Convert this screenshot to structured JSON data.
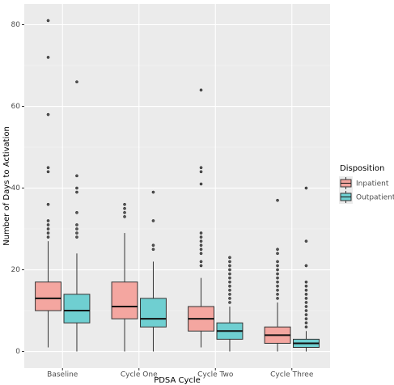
{
  "chart_data": {
    "type": "boxplot",
    "x_label": "PDSA Cycle",
    "y_label": "Number of Days to Activation",
    "categories": [
      "Baseline",
      "Cycle One",
      "Cycle Two",
      "Cycle Three"
    ],
    "ylim": [
      -4.05,
      85.05
    ],
    "yticks": [
      0,
      20,
      40,
      60,
      80
    ],
    "grid": true,
    "legend_title": "Disposition",
    "legend_position": "right",
    "series": [
      {
        "name": "Inpatient",
        "color": "#F4A6A0",
        "boxes": [
          {
            "whislo": 1,
            "q1": 10,
            "med": 13,
            "q3": 17,
            "whishi": 27,
            "outliers": [
              81,
              72,
              58,
              45,
              44,
              36,
              32,
              31,
              30,
              29,
              28
            ]
          },
          {
            "whislo": 0,
            "q1": 8,
            "med": 11,
            "q3": 17,
            "whishi": 29,
            "outliers": [
              36,
              35,
              34,
              33
            ]
          },
          {
            "whislo": 1,
            "q1": 5,
            "med": 8,
            "q3": 11,
            "whishi": 18,
            "outliers": [
              64,
              45,
              44,
              41,
              29,
              28,
              27,
              26,
              25,
              24,
              22,
              21
            ]
          },
          {
            "whislo": 0,
            "q1": 2,
            "med": 4,
            "q3": 6,
            "whishi": 12,
            "outliers": [
              37,
              25,
              24,
              22,
              21,
              20,
              19,
              18,
              17,
              16,
              15,
              14,
              13
            ]
          }
        ]
      },
      {
        "name": "Outpatient",
        "color": "#6FCFD1",
        "boxes": [
          {
            "whislo": 0,
            "q1": 7,
            "med": 10,
            "q3": 14,
            "whishi": 24,
            "outliers": [
              66,
              43,
              40,
              39,
              34,
              31,
              30,
              29,
              28
            ]
          },
          {
            "whislo": 0,
            "q1": 6,
            "med": 8,
            "q3": 13,
            "whishi": 22,
            "outliers": [
              39,
              32,
              26,
              25
            ]
          },
          {
            "whislo": 0,
            "q1": 3,
            "med": 5,
            "q3": 7,
            "whishi": 11,
            "outliers": [
              23,
              22,
              21,
              20,
              19,
              18,
              17,
              16,
              15,
              14,
              13,
              12
            ]
          },
          {
            "whislo": 0,
            "q1": 1,
            "med": 2,
            "q3": 3,
            "whishi": 5,
            "outliers": [
              40,
              27,
              21,
              17,
              16,
              15,
              14,
              13,
              12,
              11,
              10,
              9,
              8,
              7,
              6
            ]
          }
        ]
      }
    ]
  }
}
